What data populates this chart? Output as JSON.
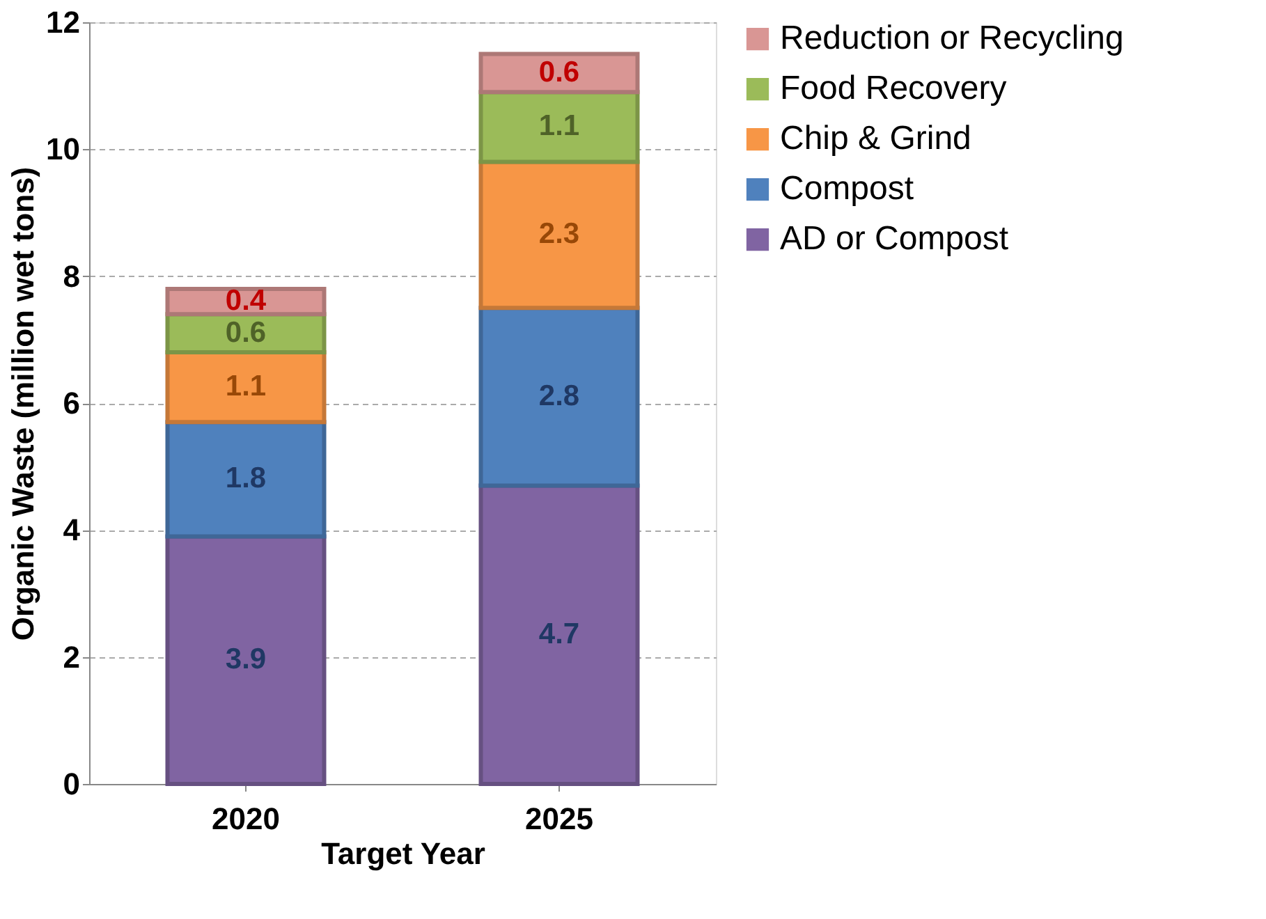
{
  "chart_data": {
    "type": "bar",
    "stacked": true,
    "xlabel": "Target Year",
    "ylabel": "Organic Waste (million wet tons)",
    "categories": [
      "2020",
      "2025"
    ],
    "series": [
      {
        "name": "AD or Compost",
        "color": "#8064a2",
        "values": [
          3.9,
          4.7
        ]
      },
      {
        "name": "Compost",
        "color": "#4f81bd",
        "values": [
          1.8,
          2.8
        ]
      },
      {
        "name": "Chip & Grind",
        "color": "#f79646",
        "values": [
          1.1,
          2.3
        ]
      },
      {
        "name": "Food Recovery",
        "color": "#9bbb59",
        "values": [
          0.6,
          1.1
        ]
      },
      {
        "name": "Reduction or Recycling",
        "color": "#d99694",
        "values": [
          0.4,
          0.6
        ]
      }
    ],
    "ylim": [
      0,
      12
    ],
    "yticks": [
      0,
      2,
      4,
      6,
      8,
      10,
      12
    ],
    "grid": "y",
    "legend": "right",
    "data_labels": true
  }
}
